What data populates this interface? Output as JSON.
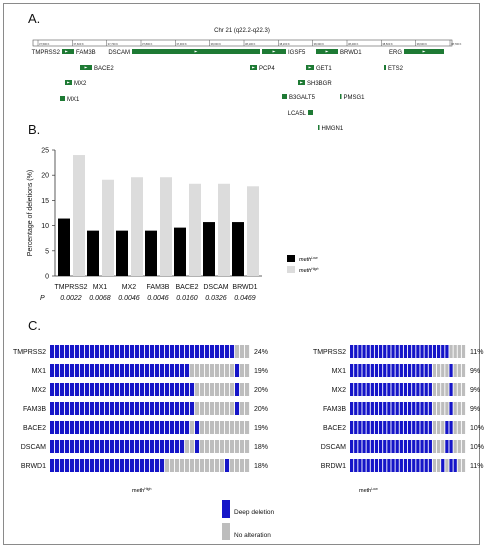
{
  "panel_a": {
    "label": "A.",
    "chromosome": "Chr 21 (q22.2-q22.3)",
    "ruler_ticks": [
      "37,500 K",
      "37,600 K",
      "37,700 K",
      "37,800 K",
      "37,900 K",
      "38,000 K",
      "38,100 K",
      "38,200 K",
      "38,300 K",
      "38,400 K",
      "38,500 K",
      "38,600 K",
      "38,700 K"
    ],
    "genes": [
      "TMPRSS2",
      "FAM3B",
      "DSCAM",
      "IGSF5",
      "BRWD1",
      "ERG",
      "BACE2",
      "PCP4",
      "GET1",
      "ETS2",
      "MX2",
      "SH3BGR",
      "MX1",
      "B3GALT5",
      "PMSG1",
      "LCA5L",
      "HMGN1"
    ],
    "gene_color": "#1e7a34"
  },
  "panel_b": {
    "label": "B."
  },
  "panel_c": {
    "label": "C.",
    "high_title": "meth^High",
    "low_title": "meth^Low",
    "high_pct": [
      "24%",
      "19%",
      "20%",
      "20%",
      "19%",
      "18%",
      "18%"
    ],
    "low_pct": [
      "11%",
      "9%",
      "9%",
      "9%",
      "10%",
      "10%",
      "11%"
    ],
    "low_labels": [
      "TMPRSS2",
      "MX1",
      "MX2",
      "FAM3B",
      "BACE2",
      "DSCAM",
      "BRDW1"
    ],
    "legend": [
      "Deep deletion",
      "No alteration"
    ],
    "deletion_color": "#1515c8",
    "noalt_color": "#bdbdbd"
  },
  "chart_data": [
    {
      "type": "bar",
      "title": "",
      "xlabel": "",
      "ylabel": "Percentage of deletions (%)",
      "ylim": [
        0,
        25
      ],
      "yticks": [
        "0",
        "5",
        "10",
        "15",
        "20",
        "25"
      ],
      "categories": [
        "TMPRSS2",
        "MX1",
        "MX2",
        "FAM3B",
        "BACE2",
        "DSCAM",
        "BRWD1"
      ],
      "series": [
        {
          "name": "meth^Low",
          "color": "#000000",
          "values": [
            11.4,
            9.0,
            9.0,
            9.0,
            9.6,
            10.7,
            10.7
          ]
        },
        {
          "name": "meth^High",
          "color": "#dcdcdc",
          "values": [
            24.0,
            19.1,
            19.6,
            19.6,
            18.3,
            18.3,
            17.8
          ]
        }
      ],
      "p_label": "P",
      "p_values": [
        "0.0022",
        "0.0068",
        "0.0046",
        "0.0046",
        "0.0160",
        "0.0326",
        "0.0469"
      ],
      "legend_placement": "right",
      "grid": false
    }
  ]
}
